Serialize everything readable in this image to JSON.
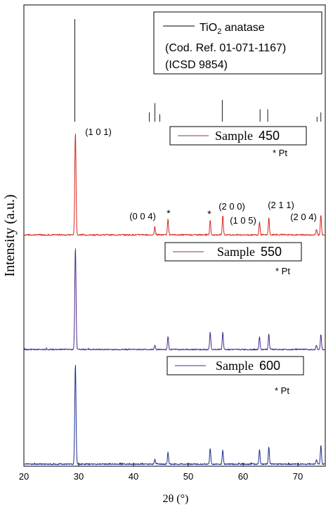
{
  "chart_data": {
    "type": "line",
    "xlabel": "2θ (°)",
    "ylabel": "Intensity (a.u.)",
    "xlim": [
      20,
      75
    ],
    "xticks": [
      20,
      30,
      40,
      50,
      60,
      70
    ],
    "grid": false,
    "reference": {
      "legend_line1_main": "TiO",
      "legend_line1_sub": "2",
      "legend_line1_rest": " anatase",
      "legend_line2": "(Cod. Ref. 01-071-1167)",
      "legend_line3": "(ICSD 9854)",
      "sticks": [
        {
          "x": 29.3,
          "h": 1.0
        },
        {
          "x": 42.9,
          "h": 0.15
        },
        {
          "x": 43.9,
          "h": 0.3
        },
        {
          "x": 44.8,
          "h": 0.12
        },
        {
          "x": 56.2,
          "h": 0.35
        },
        {
          "x": 63.1,
          "h": 0.2
        },
        {
          "x": 64.5,
          "h": 0.2
        },
        {
          "x": 73.5,
          "h": 0.08
        },
        {
          "x": 74.2,
          "h": 0.15
        }
      ]
    },
    "series": [
      {
        "name_word": "Sample",
        "name_num": "450",
        "color": "#d9261c",
        "legend_line_color": "#7a3a6a",
        "pt_label": "* Pt",
        "peaks": [
          {
            "x": 29.4,
            "h": 1.0
          },
          {
            "x": 43.9,
            "h": 0.08
          },
          {
            "x": 46.3,
            "h": 0.16
          },
          {
            "x": 54.0,
            "h": 0.15
          },
          {
            "x": 56.3,
            "h": 0.19
          },
          {
            "x": 63.0,
            "h": 0.13
          },
          {
            "x": 64.7,
            "h": 0.17
          },
          {
            "x": 73.4,
            "h": 0.05
          },
          {
            "x": 74.2,
            "h": 0.2
          }
        ]
      },
      {
        "name_word": "Sample",
        "name_num": "550",
        "color": "#4b2a8c",
        "legend_line_color": "#7a3a6a",
        "pt_label": "* Pt",
        "peaks": [
          {
            "x": 29.4,
            "h": 1.0
          },
          {
            "x": 43.9,
            "h": 0.04
          },
          {
            "x": 46.3,
            "h": 0.13
          },
          {
            "x": 54.0,
            "h": 0.17
          },
          {
            "x": 56.3,
            "h": 0.17
          },
          {
            "x": 63.0,
            "h": 0.12
          },
          {
            "x": 64.7,
            "h": 0.15
          },
          {
            "x": 73.4,
            "h": 0.04
          },
          {
            "x": 74.2,
            "h": 0.15
          }
        ]
      },
      {
        "name_word": "Sample",
        "name_num": "600",
        "color": "#1d2f8f",
        "legend_line_color": "#3a3a7a",
        "pt_label": "* Pt",
        "peaks": [
          {
            "x": 29.4,
            "h": 1.0
          },
          {
            "x": 43.9,
            "h": 0.05
          },
          {
            "x": 46.3,
            "h": 0.12
          },
          {
            "x": 54.0,
            "h": 0.16
          },
          {
            "x": 56.3,
            "h": 0.14
          },
          {
            "x": 63.0,
            "h": 0.15
          },
          {
            "x": 64.7,
            "h": 0.17
          },
          {
            "x": 73.4,
            "h": 0.05
          },
          {
            "x": 74.2,
            "h": 0.19
          }
        ]
      }
    ],
    "annotations": [
      {
        "text": "(1 0 1)",
        "x": 31.5
      },
      {
        "text": "(0 0 4)",
        "x": 41.0
      },
      {
        "text": "*",
        "x": 46.3
      },
      {
        "text": "(2 0 0)",
        "x": 56.6
      },
      {
        "text": "*",
        "x": 53.7
      },
      {
        "text": "(1 0 5)",
        "x": 60.5
      },
      {
        "text": "(2 1 1)",
        "x": 67.1
      },
      {
        "text": "(2 0 4)",
        "x": 73.5
      }
    ]
  }
}
